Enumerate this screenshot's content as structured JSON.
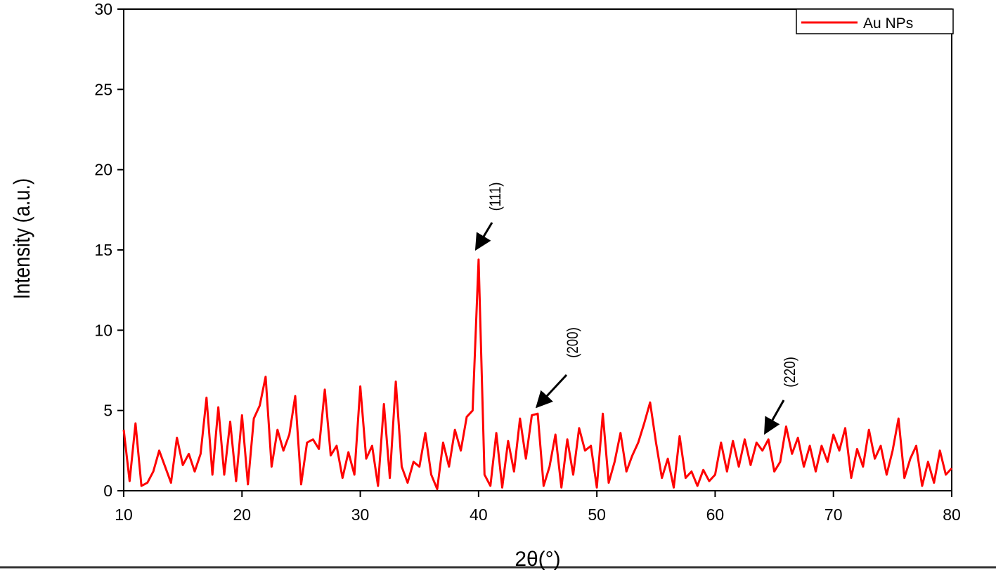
{
  "chart_data": {
    "type": "line",
    "x_label": "2θ(°)",
    "y_label": "Intensity (a.u.)",
    "xlim": [
      10,
      80
    ],
    "ylim": [
      0,
      30
    ],
    "xticks": [
      10,
      20,
      30,
      40,
      50,
      60,
      70,
      80
    ],
    "yticks": [
      0,
      5,
      10,
      15,
      20,
      25,
      30
    ],
    "legend": "upper right",
    "annotations": [
      "(111)",
      "(200)",
      "(220)"
    ],
    "x": [
      10,
      10.5,
      11,
      11.5,
      12,
      12.5,
      13,
      13.5,
      14,
      14.5,
      15,
      15.5,
      16,
      16.5,
      17,
      17.5,
      18,
      18.5,
      19,
      19.5,
      20,
      20.5,
      21,
      21.5,
      22,
      22.5,
      23,
      23.5,
      24,
      24.5,
      25,
      25.5,
      26,
      26.5,
      27,
      27.5,
      28,
      28.5,
      29,
      29.5,
      30,
      30.5,
      31,
      31.5,
      32,
      32.5,
      33,
      33.5,
      34,
      34.5,
      35,
      35.5,
      36,
      36.5,
      37,
      37.5,
      38,
      38.5,
      39,
      39.5,
      40,
      40.5,
      41,
      41.5,
      42,
      42.5,
      43,
      43.5,
      44,
      44.5,
      45,
      45.5,
      46,
      46.5,
      47,
      47.5,
      48,
      48.5,
      49,
      49.5,
      50,
      50.5,
      51,
      51.5,
      52,
      52.5,
      53,
      53.5,
      54,
      54.5,
      55,
      55.5,
      56,
      56.5,
      57,
      57.5,
      58,
      58.5,
      59,
      59.5,
      60,
      60.5,
      61,
      61.5,
      62,
      62.5,
      63,
      63.5,
      64,
      64.5,
      65,
      65.5,
      66,
      66.5,
      67,
      67.5,
      68,
      68.5,
      69,
      69.5,
      70,
      70.5,
      71,
      71.5,
      72,
      72.5,
      73,
      73.5,
      74,
      74.5,
      75,
      75.5,
      76,
      76.5,
      77,
      77.5,
      78,
      78.5,
      79,
      79.5,
      80
    ],
    "series": [
      {
        "name": "Au NPs",
        "color": "#ff0000",
        "values": [
          3.8,
          0.6,
          4.2,
          0.3,
          0.5,
          1.2,
          2.5,
          1.5,
          0.5,
          3.3,
          1.6,
          2.3,
          1.2,
          2.3,
          5.8,
          1.0,
          5.2,
          1.0,
          4.3,
          0.6,
          4.7,
          0.4,
          4.5,
          5.3,
          7.1,
          1.5,
          3.8,
          2.5,
          3.5,
          5.9,
          0.4,
          3.0,
          3.2,
          2.6,
          6.3,
          2.2,
          2.8,
          0.8,
          2.4,
          1.0,
          6.5,
          2.0,
          2.8,
          0.3,
          5.4,
          0.8,
          6.8,
          1.5,
          0.5,
          1.8,
          1.5,
          3.6,
          1.0,
          0.1,
          3.0,
          1.5,
          3.8,
          2.5,
          4.6,
          5.0,
          14.4,
          1.0,
          0.3,
          3.6,
          0.2,
          3.1,
          1.2,
          4.5,
          2.0,
          4.7,
          4.8,
          0.3,
          1.5,
          3.5,
          0.2,
          3.2,
          1.0,
          3.9,
          2.5,
          2.8,
          0.2,
          4.8,
          0.5,
          1.8,
          3.6,
          1.2,
          2.2,
          3.0,
          4.2,
          5.5,
          3.0,
          0.8,
          2.0,
          0.2,
          3.4,
          0.8,
          1.2,
          0.3,
          1.3,
          0.6,
          1.0,
          3.0,
          1.2,
          3.1,
          1.5,
          3.2,
          1.6,
          3.0,
          2.5,
          3.2,
          1.2,
          1.8,
          4.0,
          2.3,
          3.3,
          1.5,
          2.8,
          1.2,
          2.8,
          1.8,
          3.5,
          2.5,
          3.9,
          0.8,
          2.6,
          1.5,
          3.8,
          2.0,
          2.8,
          1.0,
          2.5,
          4.5,
          0.8,
          2.0,
          2.8,
          0.3,
          1.8,
          0.5,
          2.5,
          1.0,
          1.4
        ]
      }
    ]
  }
}
